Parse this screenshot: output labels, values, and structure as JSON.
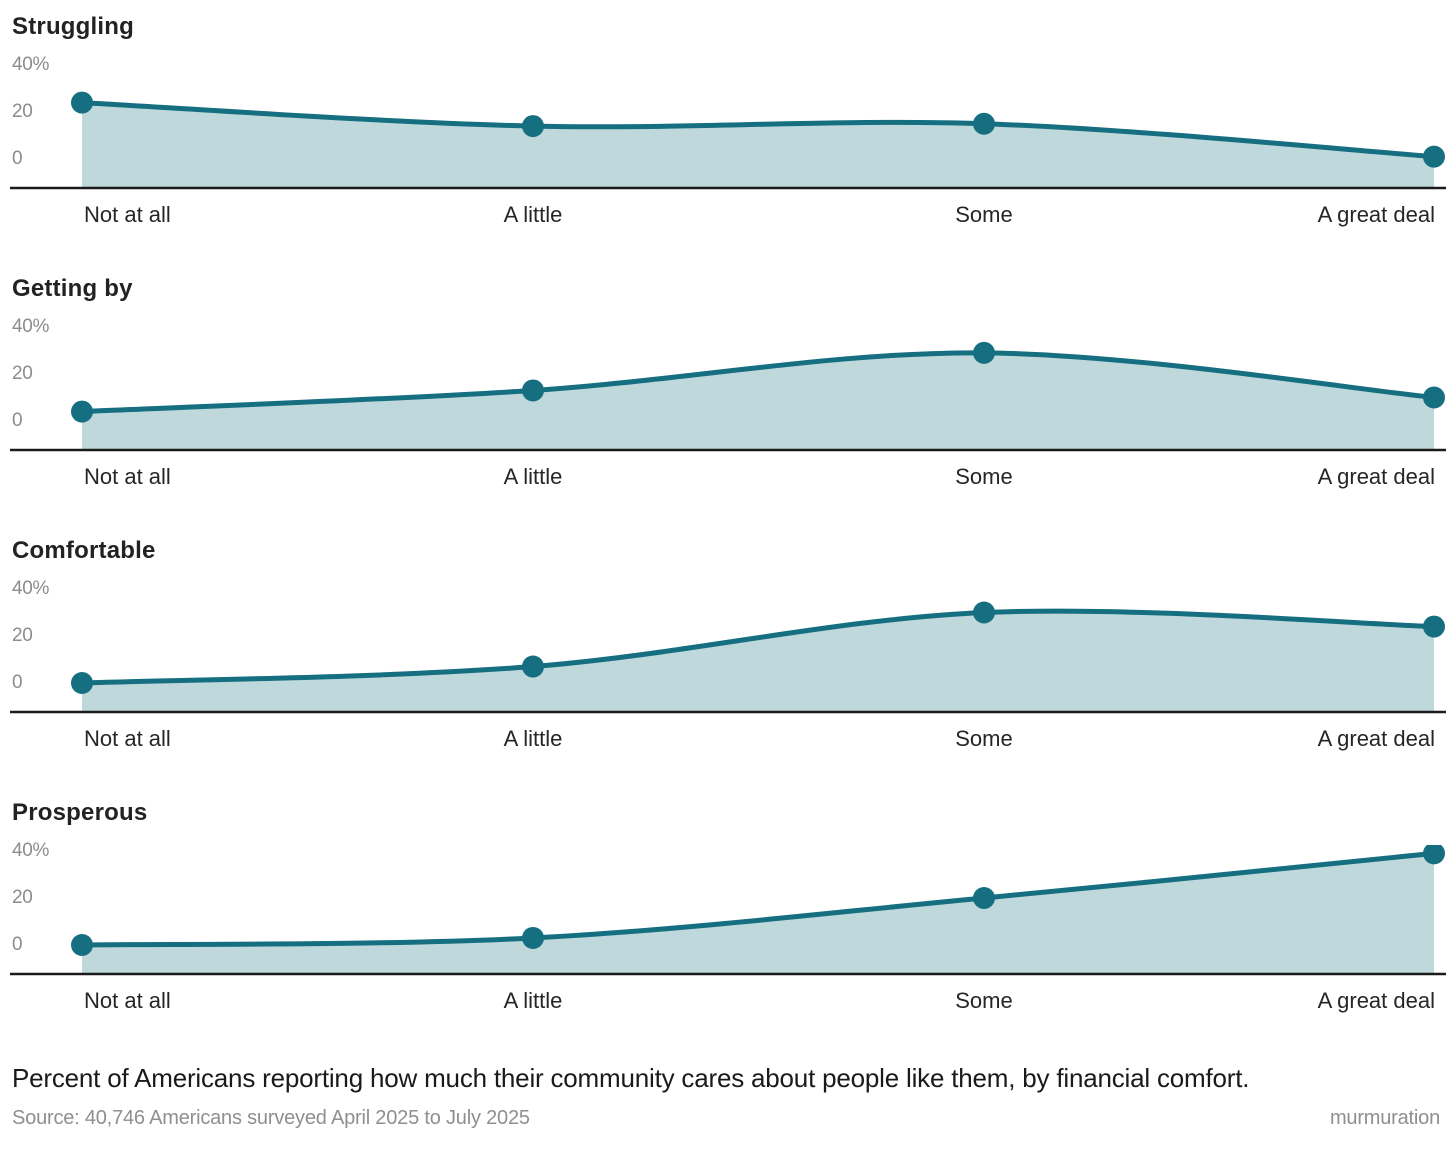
{
  "page": {
    "caption": "Percent of Americans reporting how much their community cares about people like them, by financial comfort.",
    "source": "Source: 40,746 Americans surveyed April 2025 to July 2025",
    "brand": "murmuration"
  },
  "colors": {
    "line": "#156f80",
    "dot": "#156f80",
    "fill": "#bed8db",
    "axis_line": "#1a1a1a",
    "tick_text": "#8c8c8c",
    "label_text": "#262626"
  },
  "axis": {
    "ytick_labels": [
      "40%",
      "20",
      "0"
    ],
    "ytick_values": [
      40,
      20,
      0
    ],
    "ylim": [
      0,
      45
    ],
    "grid": "off"
  },
  "chart_data": [
    {
      "type": "area",
      "title": "Struggling",
      "categories": [
        "Not at all",
        "A little",
        "Some",
        "A great deal"
      ],
      "values": [
        24,
        14,
        15,
        1
      ],
      "unit": "%",
      "ylim": [
        0,
        45
      ]
    },
    {
      "type": "area",
      "title": "Getting by",
      "categories": [
        "Not at all",
        "A little",
        "Some",
        "A great deal"
      ],
      "values": [
        4,
        13,
        29,
        10
      ],
      "unit": "%",
      "ylim": [
        0,
        45
      ]
    },
    {
      "type": "area",
      "title": "Comfortable",
      "categories": [
        "Not at all",
        "A little",
        "Some",
        "A great deal"
      ],
      "values": [
        0,
        7,
        30,
        24
      ],
      "unit": "%",
      "ylim": [
        0,
        45
      ]
    },
    {
      "type": "area",
      "title": "Prosperous",
      "categories": [
        "Not at all",
        "A little",
        "Some",
        "A great deal"
      ],
      "values": [
        0,
        3,
        20,
        39
      ],
      "unit": "%",
      "ylim": [
        0,
        45
      ]
    }
  ]
}
